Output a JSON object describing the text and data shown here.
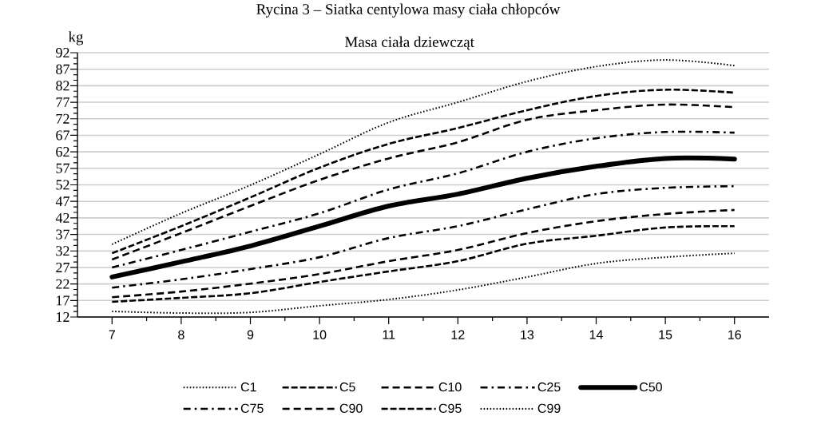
{
  "chart_data": {
    "type": "line",
    "title": "Rycina 3 – Siatka centylowa masy ciała chłopców",
    "subtitle": "Masa ciała dziewcząt",
    "ylabel": "kg",
    "x": [
      7,
      8,
      9,
      10,
      11,
      12,
      13,
      14,
      15,
      16
    ],
    "xlim": [
      6.5,
      16.5
    ],
    "xticks": [
      7,
      8,
      9,
      10,
      11,
      12,
      13,
      14,
      15,
      16
    ],
    "ylim": [
      12,
      92
    ],
    "yticks": [
      12,
      17,
      22,
      27,
      32,
      37,
      42,
      47,
      52,
      57,
      62,
      67,
      72,
      77,
      82,
      87,
      92
    ],
    "grid": "y",
    "legend": "bottom",
    "marker": "none",
    "series": [
      {
        "name": "C1",
        "color": "#000000",
        "line_style": "dotted",
        "values": [
          13.7,
          13.2,
          13.4,
          15.4,
          17.3,
          20.2,
          24.1,
          28.2,
          30.1,
          31.3
        ]
      },
      {
        "name": "C5",
        "color": "#000000",
        "line_style": "dashed",
        "values": [
          16.6,
          17.8,
          19.2,
          22.6,
          25.8,
          28.9,
          34.2,
          36.6,
          39.1,
          39.5
        ]
      },
      {
        "name": "C10",
        "color": "#000000",
        "line_style": "longdashed",
        "values": [
          18.0,
          19.7,
          22.1,
          25.0,
          28.9,
          32.3,
          37.4,
          41.0,
          43.2,
          44.4
        ]
      },
      {
        "name": "C25",
        "color": "#000000",
        "line_style": "dashdot",
        "values": [
          20.9,
          23.4,
          26.5,
          30.1,
          35.9,
          39.5,
          44.6,
          49.2,
          51.1,
          51.6
        ]
      },
      {
        "name": "C50",
        "color": "#000000",
        "line_style": "solid",
        "values": [
          24.1,
          28.7,
          33.5,
          39.5,
          45.6,
          49.2,
          54.0,
          57.6,
          60.0,
          59.8
        ]
      },
      {
        "name": "C75",
        "color": "#000000",
        "line_style": "dashdot",
        "values": [
          27.0,
          32.3,
          37.8,
          43.4,
          50.6,
          55.5,
          62.0,
          66.1,
          68.0,
          67.8
        ]
      },
      {
        "name": "C90",
        "color": "#000000",
        "line_style": "longdashed",
        "values": [
          29.4,
          37.4,
          45.6,
          53.5,
          60.0,
          64.9,
          71.7,
          74.6,
          76.3,
          75.5
        ]
      },
      {
        "name": "C95",
        "color": "#000000",
        "line_style": "dashed",
        "values": [
          31.3,
          39.5,
          48.2,
          57.2,
          64.4,
          69.2,
          74.6,
          78.9,
          80.8,
          79.9
        ]
      },
      {
        "name": "C99",
        "color": "#000000",
        "line_style": "dotted",
        "values": [
          34.0,
          43.4,
          51.9,
          61.3,
          70.9,
          77.0,
          83.3,
          87.8,
          89.8,
          88.1
        ]
      }
    ]
  }
}
